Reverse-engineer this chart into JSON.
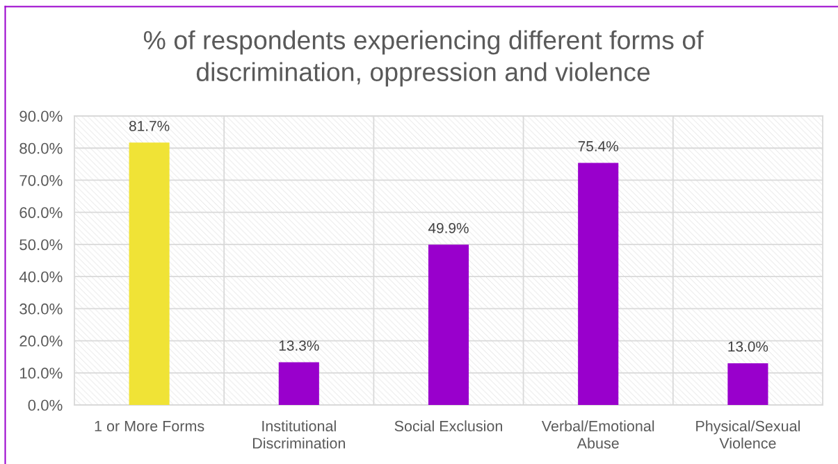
{
  "chart_data": {
    "type": "bar",
    "title": "% of respondents experiencing different forms of\ndiscrimination, oppression and violence",
    "categories": [
      "1 or More Forms",
      "Institutional\nDiscrimination",
      "Social Exclusion",
      "Verbal/Emotional\nAbuse",
      "Physical/Sexual\nViolence"
    ],
    "values": [
      81.7,
      13.3,
      49.9,
      75.4,
      13.0
    ],
    "colors": [
      "#f0e336",
      "#9900cc",
      "#9900cc",
      "#9900cc",
      "#9900cc"
    ],
    "value_labels": [
      "81.7%",
      "13.3%",
      "49.9%",
      "75.4%",
      "13.0%"
    ],
    "ylim": [
      0,
      90
    ],
    "yticks": [
      {
        "value": 0,
        "label": "0.0%"
      },
      {
        "value": 10,
        "label": "10.0%"
      },
      {
        "value": 20,
        "label": "20.0%"
      },
      {
        "value": 30,
        "label": "30.0%"
      },
      {
        "value": 40,
        "label": "40.0%"
      },
      {
        "value": 50,
        "label": "50.0%"
      },
      {
        "value": 60,
        "label": "60.0%"
      },
      {
        "value": 70,
        "label": "70.0%"
      },
      {
        "value": 80,
        "label": "80.0%"
      },
      {
        "value": 90,
        "label": "90.0%"
      }
    ],
    "grid": true
  }
}
